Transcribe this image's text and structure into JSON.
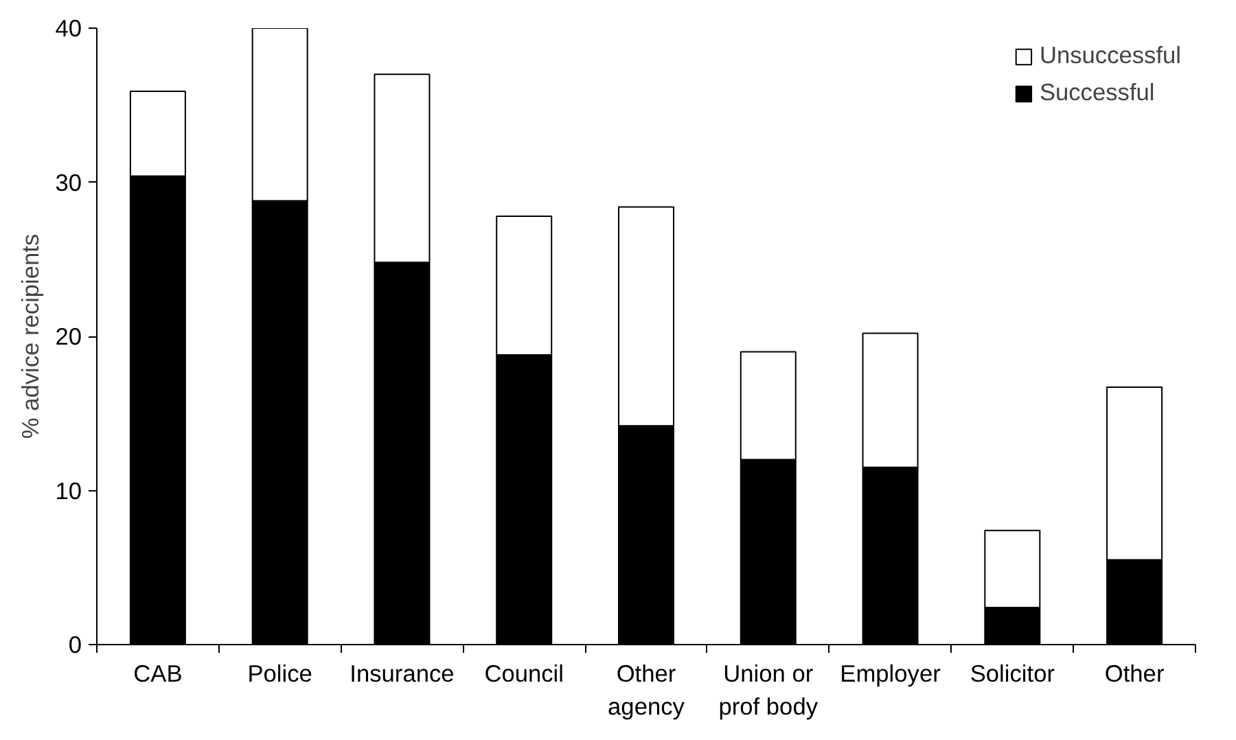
{
  "chart_data": {
    "type": "bar",
    "stacked": true,
    "ylabel": "% advice recipients",
    "categories": [
      "CAB",
      "Police",
      "Insurance",
      "Council",
      "Other\nagency",
      "Union or\nprof body",
      "Employer",
      "Solicitor",
      "Other"
    ],
    "series": [
      {
        "name": "Successful",
        "color": "#000000",
        "values": [
          30.4,
          28.8,
          24.8,
          18.8,
          14.2,
          12.0,
          11.5,
          2.4,
          5.5
        ]
      },
      {
        "name": "Unsuccessful",
        "color": "#ffffff",
        "values": [
          5.5,
          11.2,
          12.2,
          9.0,
          14.2,
          7.0,
          8.7,
          5.0,
          11.2
        ]
      }
    ],
    "ylim": [
      0,
      40
    ],
    "yticks": [
      0,
      10,
      20,
      30,
      40
    ],
    "grid": false,
    "legend": "top right"
  }
}
